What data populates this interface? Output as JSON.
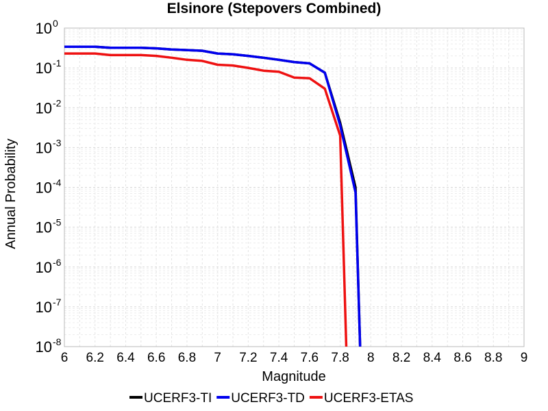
{
  "chart_data": {
    "type": "line",
    "title": "Elsinore (Stepovers Combined)",
    "xlabel": "Magnitude",
    "ylabel": "Annual Probability",
    "xlim": [
      6,
      9
    ],
    "ylim": [
      1e-08,
      1
    ],
    "y_scale": "log",
    "grid": true,
    "legend_position": "bottom",
    "x_ticks": [
      "6",
      "6.2",
      "6.4",
      "6.6",
      "6.8",
      "7",
      "7.2",
      "7.4",
      "7.6",
      "7.8",
      "8",
      "8.2",
      "8.4",
      "8.6",
      "8.8",
      "9"
    ],
    "x_tick_values": [
      6,
      6.2,
      6.4,
      6.6,
      6.8,
      7,
      7.2,
      7.4,
      7.6,
      7.8,
      8,
      8.2,
      8.4,
      8.6,
      8.8,
      9
    ],
    "y_ticks": [
      {
        "base": "10",
        "exp": "0",
        "value": 1
      },
      {
        "base": "10",
        "exp": "-1",
        "value": 0.1
      },
      {
        "base": "10",
        "exp": "-2",
        "value": 0.01
      },
      {
        "base": "10",
        "exp": "-3",
        "value": 0.001
      },
      {
        "base": "10",
        "exp": "-4",
        "value": 0.0001
      },
      {
        "base": "10",
        "exp": "-5",
        "value": 1e-05
      },
      {
        "base": "10",
        "exp": "-6",
        "value": 1e-06
      },
      {
        "base": "10",
        "exp": "-7",
        "value": 1e-07
      },
      {
        "base": "10",
        "exp": "-8",
        "value": 1e-08
      }
    ],
    "series": [
      {
        "name": "UCERF3-TI",
        "color": "#000000",
        "x": [
          6.0,
          6.1,
          6.2,
          6.3,
          6.4,
          6.5,
          6.6,
          6.7,
          6.8,
          6.9,
          7.0,
          7.1,
          7.2,
          7.3,
          7.4,
          7.5,
          7.6,
          7.7,
          7.8,
          7.9,
          7.93
        ],
        "y": [
          0.34,
          0.34,
          0.34,
          0.32,
          0.32,
          0.32,
          0.31,
          0.29,
          0.28,
          0.27,
          0.23,
          0.22,
          0.2,
          0.18,
          0.16,
          0.14,
          0.13,
          0.076,
          0.0042,
          0.0001,
          1e-08
        ]
      },
      {
        "name": "UCERF3-TD",
        "color": "#0000ee",
        "x": [
          6.0,
          6.1,
          6.2,
          6.3,
          6.4,
          6.5,
          6.6,
          6.7,
          6.8,
          6.9,
          7.0,
          7.1,
          7.2,
          7.3,
          7.4,
          7.5,
          7.6,
          7.7,
          7.8,
          7.9,
          7.93
        ],
        "y": [
          0.34,
          0.34,
          0.34,
          0.32,
          0.32,
          0.32,
          0.31,
          0.29,
          0.28,
          0.27,
          0.23,
          0.22,
          0.2,
          0.18,
          0.16,
          0.14,
          0.13,
          0.076,
          0.0036,
          7.5e-05,
          1e-08
        ]
      },
      {
        "name": "UCERF3-ETAS",
        "color": "#ee1111",
        "x": [
          6.0,
          6.1,
          6.2,
          6.3,
          6.4,
          6.5,
          6.6,
          6.7,
          6.8,
          6.9,
          7.0,
          7.1,
          7.2,
          7.3,
          7.4,
          7.5,
          7.6,
          7.7,
          7.8,
          7.84
        ],
        "y": [
          0.23,
          0.23,
          0.23,
          0.21,
          0.21,
          0.21,
          0.2,
          0.18,
          0.16,
          0.15,
          0.12,
          0.115,
          0.1,
          0.085,
          0.08,
          0.057,
          0.055,
          0.03,
          0.002,
          1e-08
        ]
      }
    ]
  }
}
